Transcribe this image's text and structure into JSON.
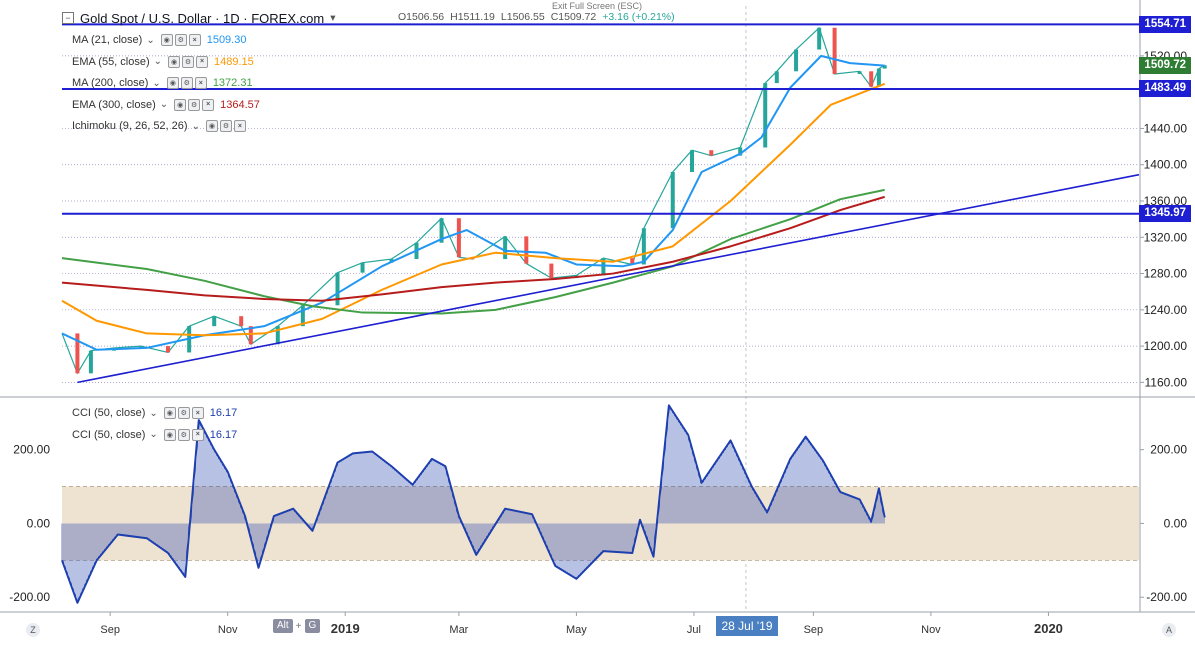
{
  "header": {
    "symbol_title": "Gold Spot / U.S. Dollar · 1D · FOREX.com",
    "open": "O1506.56",
    "high": "H1511.19",
    "low": "L1506.55",
    "close": "C1509.72",
    "change": "+3.16 (+0.21%)",
    "exit_fullscreen": "Exit Full Screen (ESC)"
  },
  "indicators": [
    {
      "label": "MA (21, close)",
      "value": "1509.30",
      "color": "#2196f3"
    },
    {
      "label": "EMA (55, close)",
      "value": "1489.15",
      "color": "#ff9800"
    },
    {
      "label": "MA (200, close)",
      "value": "1372.31",
      "color": "#43a047"
    },
    {
      "label": "EMA (300, close)",
      "value": "1364.57",
      "color": "#b71c1c"
    },
    {
      "label": "Ichimoku (9, 26, 52, 26)",
      "value": "",
      "color": "#2196f3"
    }
  ],
  "cci_indicators": [
    {
      "label": "CCI (50, close)",
      "value": "16.17",
      "color": "#1e3fae"
    },
    {
      "label": "CCI (50, close)",
      "value": "16.17",
      "color": "#1e3fae"
    }
  ],
  "price_axis": {
    "ticks": [
      "1160.00",
      "1200.00",
      "1240.00",
      "1280.00",
      "1320.00",
      "1360.00",
      "1400.00",
      "1440.00",
      "1520.00"
    ],
    "tick_values": [
      1160,
      1200,
      1240,
      1280,
      1320,
      1360,
      1400,
      1440,
      1520
    ],
    "tags": [
      {
        "label": "1554.71",
        "value": 1554.71,
        "color": "#1e1ed2"
      },
      {
        "label": "1509.72",
        "value": 1509.72,
        "color": "#2e7d32"
      },
      {
        "label": "1483.49",
        "value": 1483.49,
        "color": "#1e1ed2"
      },
      {
        "label": "1345.97",
        "value": 1345.97,
        "color": "#1e1ed2"
      }
    ]
  },
  "cci_axis": {
    "ticks": [
      "200.00",
      "0.00",
      "-200.00"
    ],
    "tick_values": [
      200,
      0,
      -200
    ],
    "band": [
      -100,
      100
    ]
  },
  "time_axis": {
    "labels": [
      "Sep",
      "Nov",
      "2019",
      "Mar",
      "May",
      "Jul",
      "Sep",
      "Nov",
      "2020"
    ],
    "label_dates": [
      "2018-09-01",
      "2018-11-01",
      "2019-01-01",
      "2019-03-01",
      "2019-05-01",
      "2019-07-01",
      "2019-09-01",
      "2019-11-01",
      "2020-01-01"
    ],
    "crosshair_date": "28 Jul '19",
    "crosshair_at": "2019-07-28"
  },
  "toolbar": {
    "alt_key": "Alt",
    "plus": "+",
    "g_key": "G",
    "left_corner": "Z",
    "right_corner": "A"
  },
  "chart_data": [
    {
      "type": "line",
      "title": "Gold Spot / U.S. Dollar · 1D · FOREX.com",
      "ylim": [
        1145,
        1575
      ],
      "xlim": [
        "2018-08-07",
        "2020-02-17"
      ],
      "grid": true,
      "horizontal_levels": [
        1554.71,
        1483.49,
        1345.97
      ],
      "trendlines": [
        {
          "from": [
            "2018-08-15",
            1160
          ],
          "to": [
            "2020-02-17",
            1389
          ]
        }
      ],
      "series": [
        {
          "name": "price",
          "color": "#26a69a",
          "points": [
            [
              "2018-08-07",
              1214
            ],
            [
              "2018-08-15",
              1170
            ],
            [
              "2018-08-22",
              1195
            ],
            [
              "2018-09-03",
              1198
            ],
            [
              "2018-09-17",
              1200
            ],
            [
              "2018-10-01",
              1193
            ],
            [
              "2018-10-12",
              1222
            ],
            [
              "2018-10-25",
              1233
            ],
            [
              "2018-11-08",
              1222
            ],
            [
              "2018-11-13",
              1202
            ],
            [
              "2018-11-27",
              1222
            ],
            [
              "2018-12-10",
              1245
            ],
            [
              "2018-12-28",
              1281
            ],
            [
              "2019-01-10",
              1292
            ],
            [
              "2019-01-25",
              1296
            ],
            [
              "2019-02-07",
              1314
            ],
            [
              "2019-02-20",
              1341
            ],
            [
              "2019-03-01",
              1298
            ],
            [
              "2019-03-08",
              1296
            ],
            [
              "2019-03-25",
              1321
            ],
            [
              "2019-04-05",
              1291
            ],
            [
              "2019-04-18",
              1275
            ],
            [
              "2019-05-01",
              1278
            ],
            [
              "2019-05-15",
              1297
            ],
            [
              "2019-05-30",
              1290
            ],
            [
              "2019-06-05",
              1330
            ],
            [
              "2019-06-20",
              1392
            ],
            [
              "2019-06-30",
              1416
            ],
            [
              "2019-07-10",
              1410
            ],
            [
              "2019-07-25",
              1419
            ],
            [
              "2019-08-07",
              1490
            ],
            [
              "2019-08-13",
              1503
            ],
            [
              "2019-08-23",
              1527
            ],
            [
              "2019-09-04",
              1551
            ],
            [
              "2019-09-12",
              1500
            ],
            [
              "2019-09-25",
              1503
            ],
            [
              "2019-10-01",
              1486
            ],
            [
              "2019-10-05",
              1506
            ],
            [
              "2019-10-08",
              1509.72
            ]
          ]
        },
        {
          "name": "MA (21, close)",
          "color": "#2196f3",
          "points": [
            [
              "2018-08-07",
              1214
            ],
            [
              "2018-08-25",
              1196
            ],
            [
              "2018-09-20",
              1198
            ],
            [
              "2018-10-20",
              1212
            ],
            [
              "2018-11-20",
              1222
            ],
            [
              "2018-12-20",
              1248
            ],
            [
              "2019-01-20",
              1288
            ],
            [
              "2019-02-20",
              1318
            ],
            [
              "2019-03-05",
              1328
            ],
            [
              "2019-03-25",
              1305
            ],
            [
              "2019-04-15",
              1303
            ],
            [
              "2019-05-01",
              1290
            ],
            [
              "2019-05-25",
              1288
            ],
            [
              "2019-06-05",
              1293
            ],
            [
              "2019-06-20",
              1328
            ],
            [
              "2019-07-05",
              1392
            ],
            [
              "2019-07-25",
              1412
            ],
            [
              "2019-08-05",
              1430
            ],
            [
              "2019-08-20",
              1485
            ],
            [
              "2019-09-05",
              1520
            ],
            [
              "2019-09-20",
              1512
            ],
            [
              "2019-10-08",
              1509.3
            ]
          ]
        },
        {
          "name": "EMA (55, close)",
          "color": "#ff9800",
          "points": [
            [
              "2018-08-07",
              1250
            ],
            [
              "2018-08-25",
              1228
            ],
            [
              "2018-09-20",
              1214
            ],
            [
              "2018-10-20",
              1212
            ],
            [
              "2018-11-20",
              1214
            ],
            [
              "2018-12-20",
              1230
            ],
            [
              "2019-01-20",
              1262
            ],
            [
              "2019-02-20",
              1290
            ],
            [
              "2019-03-20",
              1303
            ],
            [
              "2019-04-20",
              1297
            ],
            [
              "2019-05-20",
              1293
            ],
            [
              "2019-06-20",
              1310
            ],
            [
              "2019-07-20",
              1360
            ],
            [
              "2019-08-20",
              1422
            ],
            [
              "2019-09-10",
              1466
            ],
            [
              "2019-10-08",
              1489.15
            ]
          ]
        },
        {
          "name": "MA (200, close)",
          "color": "#43a047",
          "points": [
            [
              "2018-08-07",
              1297
            ],
            [
              "2018-09-20",
              1285
            ],
            [
              "2018-10-20",
              1272
            ],
            [
              "2018-11-20",
              1255
            ],
            [
              "2018-12-15",
              1244
            ],
            [
              "2019-01-10",
              1237
            ],
            [
              "2019-02-20",
              1236
            ],
            [
              "2019-03-20",
              1240
            ],
            [
              "2019-04-20",
              1254
            ],
            [
              "2019-05-20",
              1270
            ],
            [
              "2019-06-20",
              1288
            ],
            [
              "2019-07-20",
              1318
            ],
            [
              "2019-08-20",
              1340
            ],
            [
              "2019-09-15",
              1362
            ],
            [
              "2019-10-08",
              1372.31
            ]
          ]
        },
        {
          "name": "EMA (300, close)",
          "color": "#b71c1c",
          "points": [
            [
              "2018-08-07",
              1270
            ],
            [
              "2018-09-20",
              1262
            ],
            [
              "2018-10-20",
              1256
            ],
            [
              "2018-11-20",
              1252
            ],
            [
              "2018-12-20",
              1250
            ],
            [
              "2019-01-20",
              1257
            ],
            [
              "2019-02-20",
              1265
            ],
            [
              "2019-03-20",
              1270
            ],
            [
              "2019-04-20",
              1274
            ],
            [
              "2019-05-20",
              1280
            ],
            [
              "2019-06-20",
              1293
            ],
            [
              "2019-07-20",
              1310
            ],
            [
              "2019-08-20",
              1330
            ],
            [
              "2019-09-15",
              1350
            ],
            [
              "2019-10-08",
              1364.57
            ]
          ]
        }
      ]
    },
    {
      "type": "area",
      "title": "CCI (50, close)",
      "ylim": [
        -240,
        340
      ],
      "xlim": [
        "2018-08-07",
        "2020-02-17"
      ],
      "series": [
        {
          "name": "CCI (50, close)",
          "color": "#1e3fae",
          "points": [
            [
              "2018-08-07",
              -100
            ],
            [
              "2018-08-15",
              -215
            ],
            [
              "2018-08-25",
              -100
            ],
            [
              "2018-09-05",
              -30
            ],
            [
              "2018-09-20",
              -40
            ],
            [
              "2018-10-01",
              -80
            ],
            [
              "2018-10-10",
              -145
            ],
            [
              "2018-10-17",
              280
            ],
            [
              "2018-10-25",
              200
            ],
            [
              "2018-11-01",
              140
            ],
            [
              "2018-11-10",
              20
            ],
            [
              "2018-11-17",
              -120
            ],
            [
              "2018-11-25",
              20
            ],
            [
              "2018-12-05",
              40
            ],
            [
              "2018-12-15",
              -20
            ],
            [
              "2018-12-28",
              165
            ],
            [
              "2019-01-05",
              190
            ],
            [
              "2019-01-15",
              195
            ],
            [
              "2019-01-25",
              155
            ],
            [
              "2019-02-05",
              105
            ],
            [
              "2019-02-15",
              175
            ],
            [
              "2019-02-22",
              155
            ],
            [
              "2019-03-01",
              20
            ],
            [
              "2019-03-10",
              -85
            ],
            [
              "2019-03-25",
              40
            ],
            [
              "2019-04-08",
              25
            ],
            [
              "2019-04-20",
              -115
            ],
            [
              "2019-05-01",
              -150
            ],
            [
              "2019-05-15",
              -75
            ],
            [
              "2019-05-30",
              -80
            ],
            [
              "2019-06-03",
              10
            ],
            [
              "2019-06-10",
              -90
            ],
            [
              "2019-06-18",
              320
            ],
            [
              "2019-06-28",
              240
            ],
            [
              "2019-07-05",
              110
            ],
            [
              "2019-07-20",
              225
            ],
            [
              "2019-07-31",
              100
            ],
            [
              "2019-08-08",
              30
            ],
            [
              "2019-08-20",
              175
            ],
            [
              "2019-08-28",
              235
            ],
            [
              "2019-09-06",
              170
            ],
            [
              "2019-09-15",
              85
            ],
            [
              "2019-09-25",
              65
            ],
            [
              "2019-10-01",
              5
            ],
            [
              "2019-10-05",
              95
            ],
            [
              "2019-10-08",
              16.17
            ]
          ]
        }
      ]
    }
  ]
}
